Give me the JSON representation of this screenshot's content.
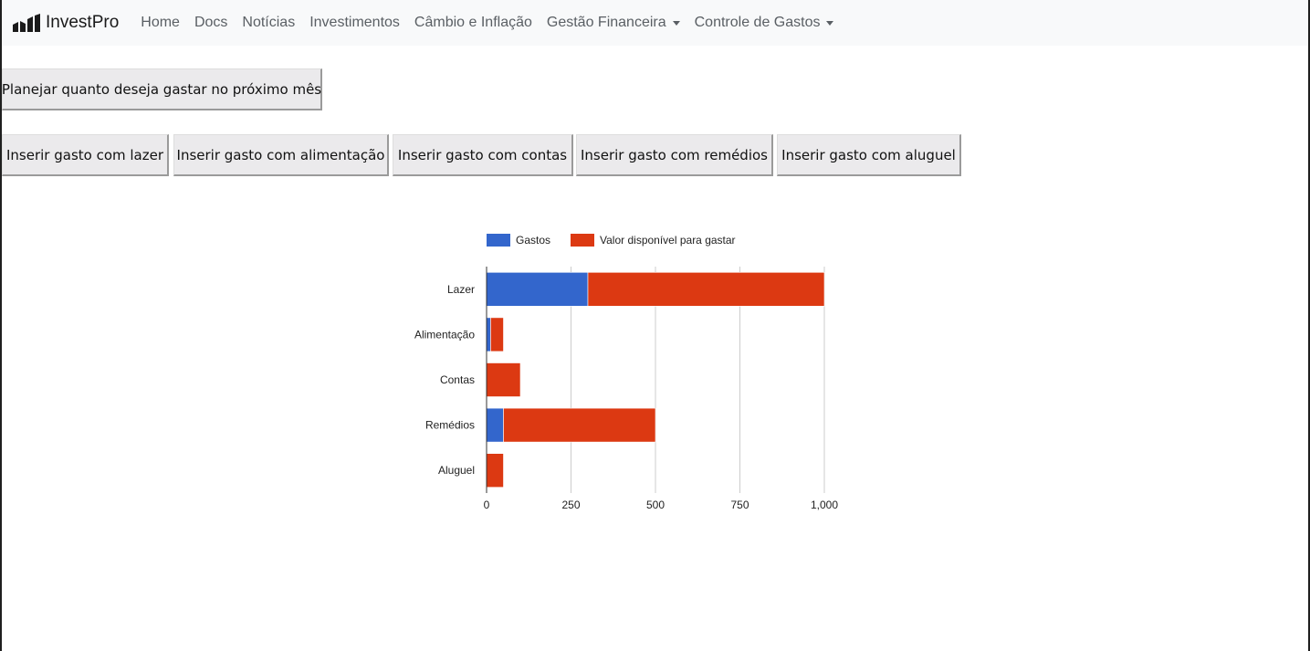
{
  "navbar": {
    "brand": "InvestPro",
    "links": [
      {
        "label": "Home"
      },
      {
        "label": "Docs"
      },
      {
        "label": "Notícias"
      },
      {
        "label": "Investimentos"
      },
      {
        "label": "Câmbio e Inflação"
      },
      {
        "label": "Gestão Financeira"
      },
      {
        "label": "Controle de Gastos"
      }
    ]
  },
  "buttons": {
    "plan": "Planejar quanto deseja gastar no próximo mês",
    "lazer": "Inserir gasto com lazer",
    "alimentacao": "Inserir gasto com alimentação",
    "contas": "Inserir gasto com contas",
    "remedios": "Inserir gasto com remédios",
    "aluguel": "Inserir gasto com aluguel"
  },
  "colors": {
    "gastos": "#3366cc",
    "disponivel": "#dc3912",
    "grid": "#cccccc",
    "axis": "#333333"
  },
  "chart_data": {
    "type": "bar",
    "orientation": "horizontal",
    "stacked": true,
    "categories": [
      "Lazer",
      "Alimentação",
      "Contas",
      "Remédios",
      "Aluguel"
    ],
    "series": [
      {
        "name": "Gastos",
        "values": [
          300,
          12,
          0,
          50,
          0
        ]
      },
      {
        "name": "Valor disponível para gastar",
        "values": [
          700,
          38,
          100,
          450,
          50
        ]
      }
    ],
    "xlim": [
      0,
      1000
    ],
    "xticks": [
      "0",
      "250",
      "500",
      "750",
      "1,000"
    ],
    "legend_position": "top",
    "grid": true
  }
}
